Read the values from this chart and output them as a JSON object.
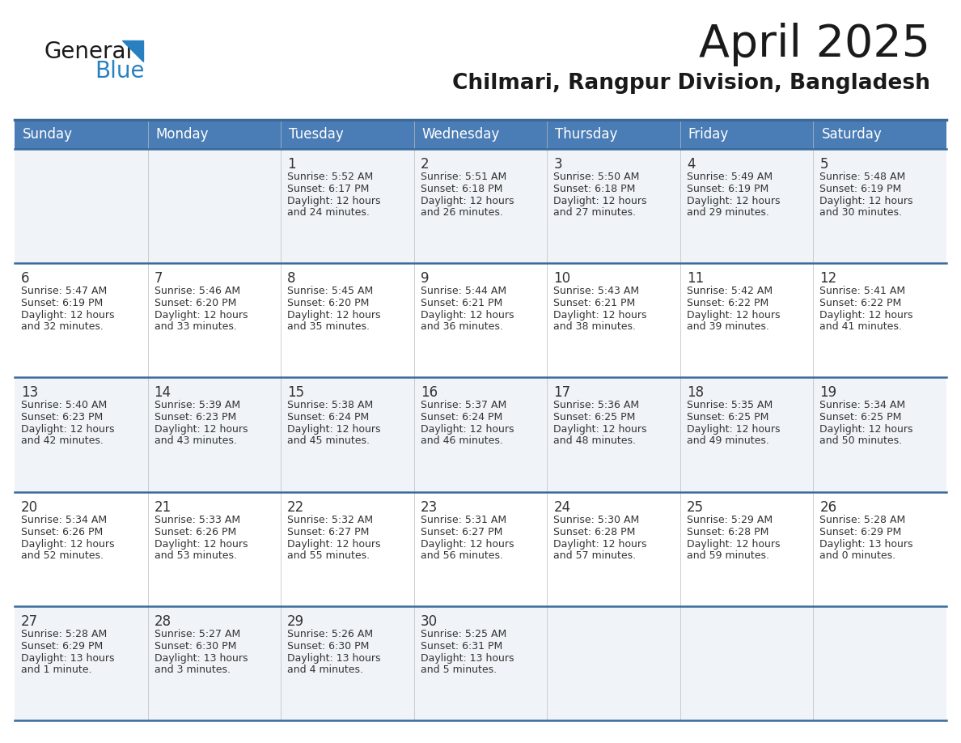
{
  "title": "April 2025",
  "subtitle": "Chilmari, Rangpur Division, Bangladesh",
  "header_bg": "#4a7db5",
  "header_text": "#ffffff",
  "row_bg_light": "#f0f4f8",
  "row_bg_white": "#ffffff",
  "border_color": "#3a6a9a",
  "text_color": "#333333",
  "days_of_week": [
    "Sunday",
    "Monday",
    "Tuesday",
    "Wednesday",
    "Thursday",
    "Friday",
    "Saturday"
  ],
  "calendar_data": [
    [
      {
        "day": "",
        "sunrise": "",
        "sunset": "",
        "daylight1": "",
        "daylight2": ""
      },
      {
        "day": "",
        "sunrise": "",
        "sunset": "",
        "daylight1": "",
        "daylight2": ""
      },
      {
        "day": "1",
        "sunrise": "Sunrise: 5:52 AM",
        "sunset": "Sunset: 6:17 PM",
        "daylight1": "Daylight: 12 hours",
        "daylight2": "and 24 minutes."
      },
      {
        "day": "2",
        "sunrise": "Sunrise: 5:51 AM",
        "sunset": "Sunset: 6:18 PM",
        "daylight1": "Daylight: 12 hours",
        "daylight2": "and 26 minutes."
      },
      {
        "day": "3",
        "sunrise": "Sunrise: 5:50 AM",
        "sunset": "Sunset: 6:18 PM",
        "daylight1": "Daylight: 12 hours",
        "daylight2": "and 27 minutes."
      },
      {
        "day": "4",
        "sunrise": "Sunrise: 5:49 AM",
        "sunset": "Sunset: 6:19 PM",
        "daylight1": "Daylight: 12 hours",
        "daylight2": "and 29 minutes."
      },
      {
        "day": "5",
        "sunrise": "Sunrise: 5:48 AM",
        "sunset": "Sunset: 6:19 PM",
        "daylight1": "Daylight: 12 hours",
        "daylight2": "and 30 minutes."
      }
    ],
    [
      {
        "day": "6",
        "sunrise": "Sunrise: 5:47 AM",
        "sunset": "Sunset: 6:19 PM",
        "daylight1": "Daylight: 12 hours",
        "daylight2": "and 32 minutes."
      },
      {
        "day": "7",
        "sunrise": "Sunrise: 5:46 AM",
        "sunset": "Sunset: 6:20 PM",
        "daylight1": "Daylight: 12 hours",
        "daylight2": "and 33 minutes."
      },
      {
        "day": "8",
        "sunrise": "Sunrise: 5:45 AM",
        "sunset": "Sunset: 6:20 PM",
        "daylight1": "Daylight: 12 hours",
        "daylight2": "and 35 minutes."
      },
      {
        "day": "9",
        "sunrise": "Sunrise: 5:44 AM",
        "sunset": "Sunset: 6:21 PM",
        "daylight1": "Daylight: 12 hours",
        "daylight2": "and 36 minutes."
      },
      {
        "day": "10",
        "sunrise": "Sunrise: 5:43 AM",
        "sunset": "Sunset: 6:21 PM",
        "daylight1": "Daylight: 12 hours",
        "daylight2": "and 38 minutes."
      },
      {
        "day": "11",
        "sunrise": "Sunrise: 5:42 AM",
        "sunset": "Sunset: 6:22 PM",
        "daylight1": "Daylight: 12 hours",
        "daylight2": "and 39 minutes."
      },
      {
        "day": "12",
        "sunrise": "Sunrise: 5:41 AM",
        "sunset": "Sunset: 6:22 PM",
        "daylight1": "Daylight: 12 hours",
        "daylight2": "and 41 minutes."
      }
    ],
    [
      {
        "day": "13",
        "sunrise": "Sunrise: 5:40 AM",
        "sunset": "Sunset: 6:23 PM",
        "daylight1": "Daylight: 12 hours",
        "daylight2": "and 42 minutes."
      },
      {
        "day": "14",
        "sunrise": "Sunrise: 5:39 AM",
        "sunset": "Sunset: 6:23 PM",
        "daylight1": "Daylight: 12 hours",
        "daylight2": "and 43 minutes."
      },
      {
        "day": "15",
        "sunrise": "Sunrise: 5:38 AM",
        "sunset": "Sunset: 6:24 PM",
        "daylight1": "Daylight: 12 hours",
        "daylight2": "and 45 minutes."
      },
      {
        "day": "16",
        "sunrise": "Sunrise: 5:37 AM",
        "sunset": "Sunset: 6:24 PM",
        "daylight1": "Daylight: 12 hours",
        "daylight2": "and 46 minutes."
      },
      {
        "day": "17",
        "sunrise": "Sunrise: 5:36 AM",
        "sunset": "Sunset: 6:25 PM",
        "daylight1": "Daylight: 12 hours",
        "daylight2": "and 48 minutes."
      },
      {
        "day": "18",
        "sunrise": "Sunrise: 5:35 AM",
        "sunset": "Sunset: 6:25 PM",
        "daylight1": "Daylight: 12 hours",
        "daylight2": "and 49 minutes."
      },
      {
        "day": "19",
        "sunrise": "Sunrise: 5:34 AM",
        "sunset": "Sunset: 6:25 PM",
        "daylight1": "Daylight: 12 hours",
        "daylight2": "and 50 minutes."
      }
    ],
    [
      {
        "day": "20",
        "sunrise": "Sunrise: 5:34 AM",
        "sunset": "Sunset: 6:26 PM",
        "daylight1": "Daylight: 12 hours",
        "daylight2": "and 52 minutes."
      },
      {
        "day": "21",
        "sunrise": "Sunrise: 5:33 AM",
        "sunset": "Sunset: 6:26 PM",
        "daylight1": "Daylight: 12 hours",
        "daylight2": "and 53 minutes."
      },
      {
        "day": "22",
        "sunrise": "Sunrise: 5:32 AM",
        "sunset": "Sunset: 6:27 PM",
        "daylight1": "Daylight: 12 hours",
        "daylight2": "and 55 minutes."
      },
      {
        "day": "23",
        "sunrise": "Sunrise: 5:31 AM",
        "sunset": "Sunset: 6:27 PM",
        "daylight1": "Daylight: 12 hours",
        "daylight2": "and 56 minutes."
      },
      {
        "day": "24",
        "sunrise": "Sunrise: 5:30 AM",
        "sunset": "Sunset: 6:28 PM",
        "daylight1": "Daylight: 12 hours",
        "daylight2": "and 57 minutes."
      },
      {
        "day": "25",
        "sunrise": "Sunrise: 5:29 AM",
        "sunset": "Sunset: 6:28 PM",
        "daylight1": "Daylight: 12 hours",
        "daylight2": "and 59 minutes."
      },
      {
        "day": "26",
        "sunrise": "Sunrise: 5:28 AM",
        "sunset": "Sunset: 6:29 PM",
        "daylight1": "Daylight: 13 hours",
        "daylight2": "and 0 minutes."
      }
    ],
    [
      {
        "day": "27",
        "sunrise": "Sunrise: 5:28 AM",
        "sunset": "Sunset: 6:29 PM",
        "daylight1": "Daylight: 13 hours",
        "daylight2": "and 1 minute."
      },
      {
        "day": "28",
        "sunrise": "Sunrise: 5:27 AM",
        "sunset": "Sunset: 6:30 PM",
        "daylight1": "Daylight: 13 hours",
        "daylight2": "and 3 minutes."
      },
      {
        "day": "29",
        "sunrise": "Sunrise: 5:26 AM",
        "sunset": "Sunset: 6:30 PM",
        "daylight1": "Daylight: 13 hours",
        "daylight2": "and 4 minutes."
      },
      {
        "day": "30",
        "sunrise": "Sunrise: 5:25 AM",
        "sunset": "Sunset: 6:31 PM",
        "daylight1": "Daylight: 13 hours",
        "daylight2": "and 5 minutes."
      },
      {
        "day": "",
        "sunrise": "",
        "sunset": "",
        "daylight1": "",
        "daylight2": ""
      },
      {
        "day": "",
        "sunrise": "",
        "sunset": "",
        "daylight1": "",
        "daylight2": ""
      },
      {
        "day": "",
        "sunrise": "",
        "sunset": "",
        "daylight1": "",
        "daylight2": ""
      }
    ]
  ],
  "logo_color_general": "#1a1a1a",
  "logo_color_blue": "#2980c0",
  "logo_triangle_color": "#2980c0",
  "title_fontsize": 40,
  "subtitle_fontsize": 19,
  "header_fontsize": 12,
  "day_num_fontsize": 12,
  "cell_text_fontsize": 9
}
